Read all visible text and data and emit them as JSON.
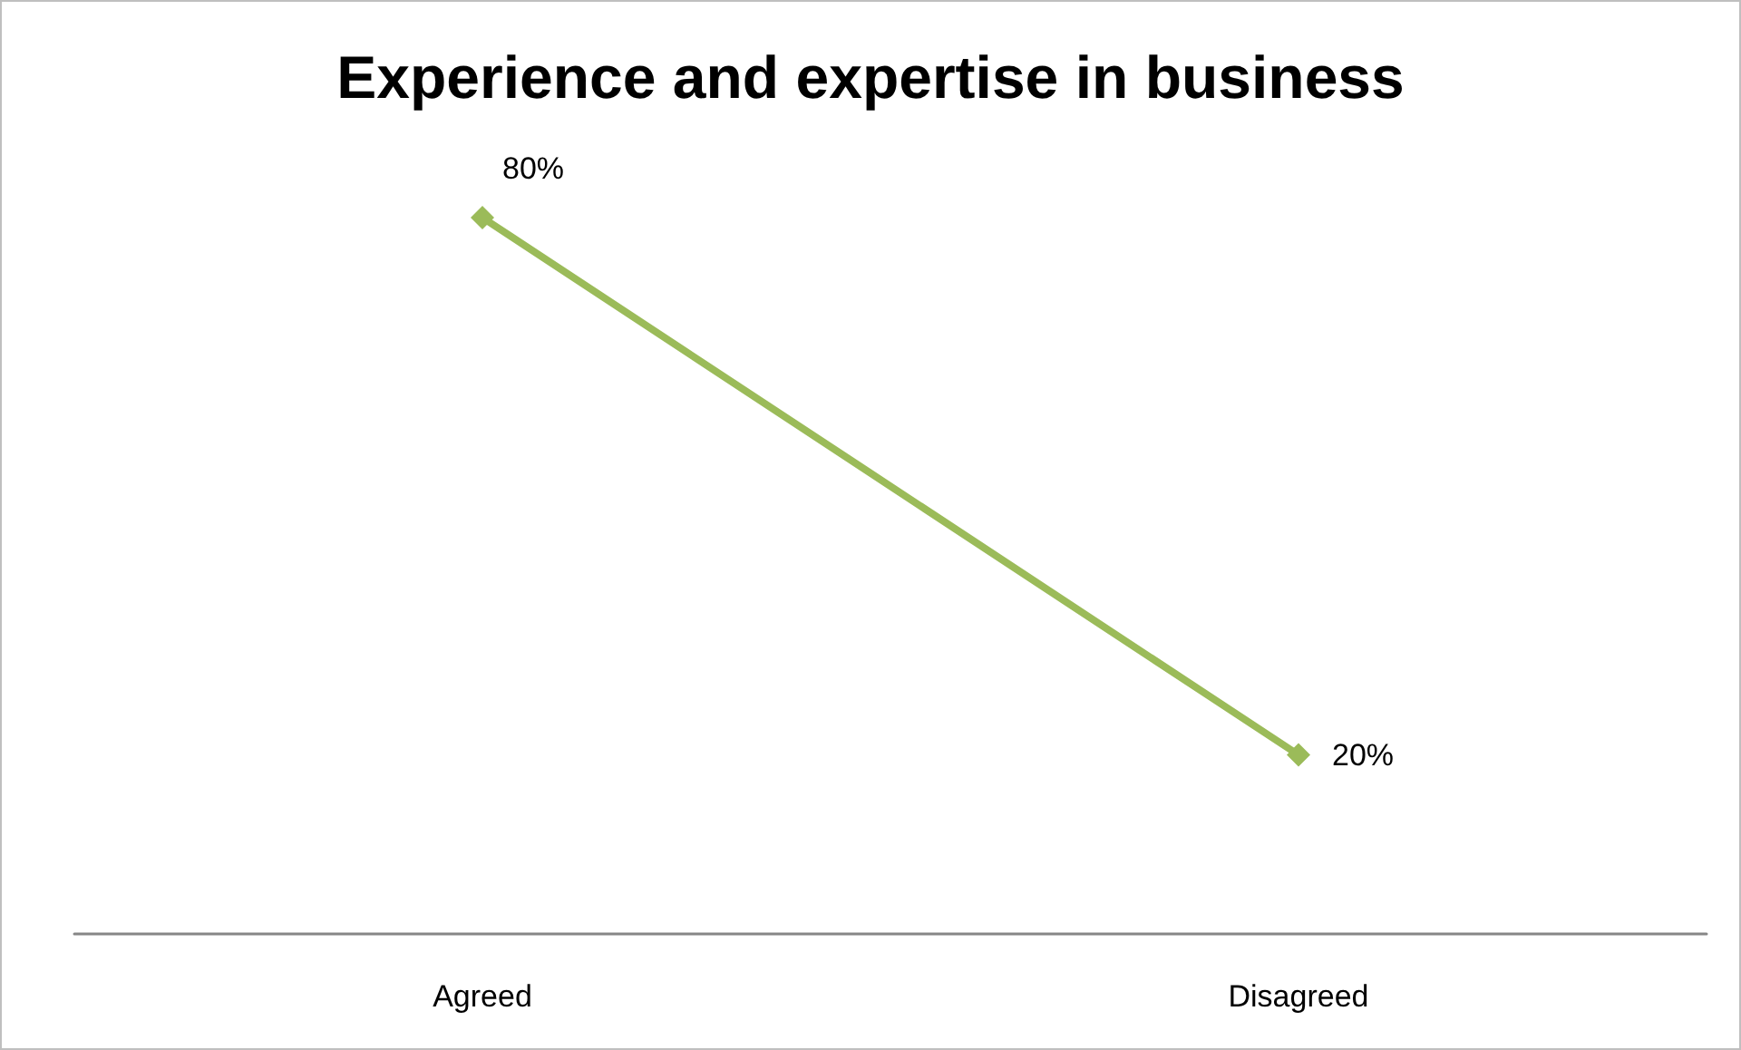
{
  "chart_data": {
    "type": "line",
    "title": "Experience and expertise in business",
    "categories": [
      "Agreed",
      "Disagreed"
    ],
    "series": [
      {
        "color": "#9bbb59",
        "values": [
          80,
          20
        ],
        "value_labels": [
          "80%",
          "20%"
        ]
      }
    ],
    "marker": "diamond",
    "line_style": "solid",
    "grid": false,
    "tick_labels": "x"
  }
}
